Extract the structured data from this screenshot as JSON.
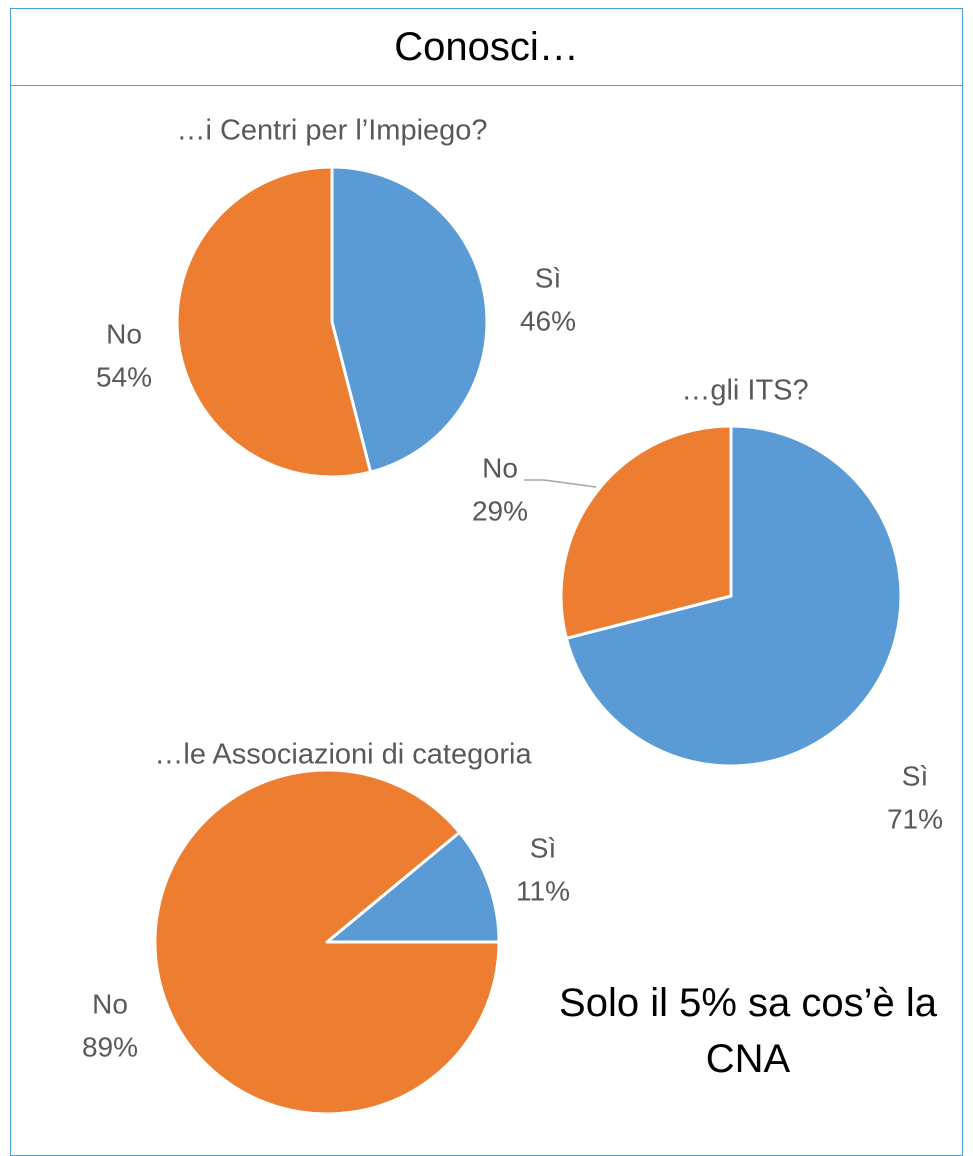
{
  "title": "Conosci…",
  "chart_data": [
    {
      "type": "pie",
      "title": "…i Centri per l’Impiego?",
      "categories": [
        "Sì",
        "No"
      ],
      "values": [
        46,
        54
      ],
      "value_labels": [
        "46%",
        "54%"
      ],
      "colors": [
        "#5b9bd5",
        "#ed7d31"
      ]
    },
    {
      "type": "pie",
      "title": "…gli ITS?",
      "categories": [
        "Sì",
        "No"
      ],
      "values": [
        71,
        29
      ],
      "value_labels": [
        "71%",
        "29%"
      ],
      "colors": [
        "#5b9bd5",
        "#ed7d31"
      ]
    },
    {
      "type": "pie",
      "title": "…le Associazioni di categoria",
      "categories": [
        "Sì",
        "No"
      ],
      "values": [
        11,
        89
      ],
      "value_labels": [
        "11%",
        "89%"
      ],
      "colors": [
        "#5b9bd5",
        "#ed7d31"
      ]
    }
  ],
  "note": "Solo il 5% sa cos’è la CNA"
}
